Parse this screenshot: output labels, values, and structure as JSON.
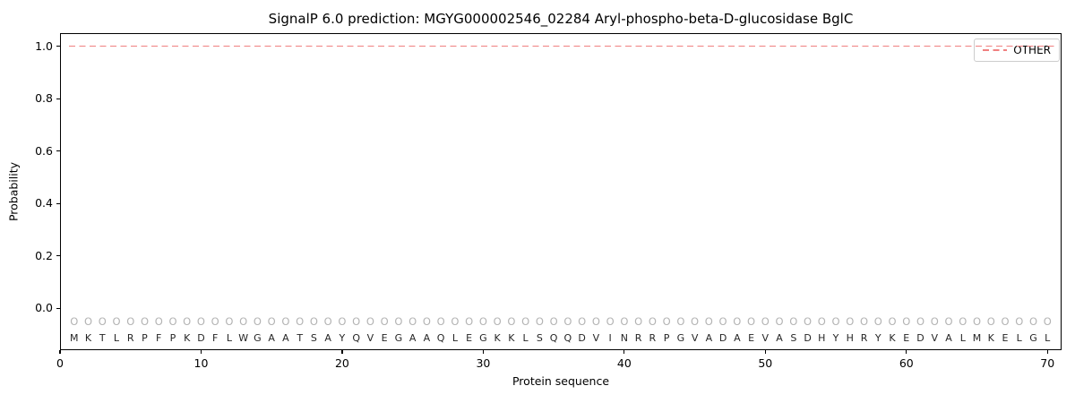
{
  "title": "SignalP 6.0 prediction: MGYG000002546_02284 Aryl-phospho-beta-D-glucosidase BglC",
  "chart_data": {
    "type": "line",
    "title": "SignalP 6.0 prediction: MGYG000002546_02284 Aryl-phospho-beta-D-glucosidase BglC",
    "xlabel": "Protein sequence",
    "ylabel": "Probability",
    "xlim": [
      0,
      71
    ],
    "ylim": [
      -0.16,
      1.05
    ],
    "xticks": [
      0,
      10,
      20,
      30,
      40,
      50,
      60,
      70
    ],
    "yticks": [
      0.0,
      0.2,
      0.4,
      0.6,
      0.8,
      1.0
    ],
    "grid": false,
    "legend": {
      "position": "upper right",
      "entries": [
        {
          "label": "OTHER",
          "color": "#f08080",
          "style": "dashed"
        }
      ]
    },
    "series": [
      {
        "name": "OTHER",
        "constant_value": 1.0,
        "x_start": 1,
        "x_end": 70
      }
    ],
    "sequence": "MKTLRPFPKDFLWGAATSAYQVEGAAQLEGKKLSQQDVINRRPGVADAEVASDHYHRYKEDVALMKELGL",
    "per_position_label": "O",
    "marker_y": -0.05,
    "letters_y": -0.113,
    "colors": {
      "other_line": "#f08080",
      "marker": "#b3b3b3",
      "residue": "#262626",
      "spine": "#000000"
    }
  }
}
